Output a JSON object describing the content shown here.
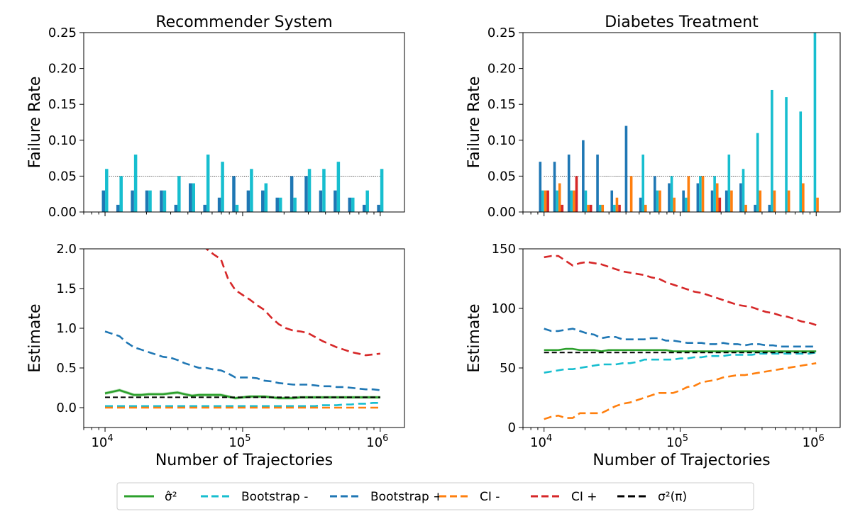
{
  "colors": {
    "sigma_hat": "#2ca02c",
    "bootstrap_minus": "#17becf",
    "bootstrap_plus": "#1f77b4",
    "ci_minus": "#ff7f0e",
    "ci_plus": "#d62728",
    "sigma_pi": "#000000"
  },
  "chart_data": [
    {
      "id": "rs_failure",
      "type": "bar",
      "title": "Recommender System",
      "xlabel": "",
      "ylabel": "Failure Rate",
      "xscale": "log",
      "xlim": [
        7000,
        1500000
      ],
      "ylim": [
        0,
        0.25
      ],
      "yticks": [
        0.0,
        0.05,
        0.1,
        0.15,
        0.2,
        0.25
      ],
      "ytick_labels": [
        "0.00",
        "0.05",
        "0.10",
        "0.15",
        "0.20",
        "0.25"
      ],
      "reference_line": 0.05,
      "x": [
        10000,
        12743,
        16238,
        20691,
        26367,
        33598,
        42813,
        54556,
        69519,
        88587,
        112884,
        143845,
        183298,
        233572,
        297635,
        379269,
        483293,
        615848,
        784760,
        1000000
      ],
      "series": [
        {
          "key": "bootstrap_plus",
          "values": [
            0.03,
            0.01,
            0.03,
            0.03,
            0.03,
            0.01,
            0.04,
            0.01,
            0.02,
            0.05,
            0.03,
            0.03,
            0.02,
            0.05,
            0.05,
            0.03,
            0.03,
            0.02,
            0.01,
            0.01
          ]
        },
        {
          "key": "bootstrap_minus",
          "values": [
            0.06,
            0.05,
            0.08,
            0.03,
            0.03,
            0.05,
            0.04,
            0.08,
            0.07,
            0.01,
            0.06,
            0.04,
            0.02,
            0.02,
            0.06,
            0.06,
            0.07,
            0.02,
            0.03,
            0.06
          ]
        }
      ]
    },
    {
      "id": "dt_failure",
      "type": "bar",
      "title": "Diabetes Treatment",
      "xlabel": "",
      "ylabel": "Failure Rate",
      "xscale": "log",
      "xlim": [
        7000,
        1500000
      ],
      "ylim": [
        0,
        0.25
      ],
      "yticks": [
        0.0,
        0.05,
        0.1,
        0.15,
        0.2,
        0.25
      ],
      "ytick_labels": [
        "0.00",
        "0.05",
        "0.10",
        "0.15",
        "0.20",
        "0.25"
      ],
      "reference_line": 0.05,
      "x": [
        10000,
        12743,
        16238,
        20691,
        26367,
        33598,
        42813,
        54556,
        69519,
        88587,
        112884,
        143845,
        183298,
        233572,
        297635,
        379269,
        483293,
        615848,
        784760,
        1000000
      ],
      "series": [
        {
          "key": "bootstrap_plus",
          "values": [
            0.07,
            0.07,
            0.08,
            0.1,
            0.08,
            0.03,
            0.12,
            0.02,
            0.05,
            0.04,
            0.03,
            0.04,
            0.03,
            0.03,
            0.04,
            0.01,
            0.01,
            0.0,
            0.0,
            0.0
          ]
        },
        {
          "key": "bootstrap_minus",
          "values": [
            0.03,
            0.03,
            0.03,
            0.03,
            0.01,
            0.01,
            0.0,
            0.08,
            0.03,
            0.05,
            0.02,
            0.05,
            0.05,
            0.08,
            0.06,
            0.11,
            0.17,
            0.16,
            0.14,
            0.25
          ]
        },
        {
          "key": "ci_minus",
          "values": [
            0.03,
            0.04,
            0.03,
            0.01,
            0.01,
            0.02,
            0.05,
            0.01,
            0.03,
            0.02,
            0.05,
            0.05,
            0.04,
            0.03,
            0.01,
            0.03,
            0.03,
            0.03,
            0.04,
            0.02
          ]
        },
        {
          "key": "ci_plus",
          "values": [
            0.03,
            0.01,
            0.05,
            0.01,
            0.0,
            0.01,
            0.0,
            0.0,
            0.0,
            0.0,
            0.0,
            0.0,
            0.02,
            0.0,
            0.0,
            0.0,
            0.0,
            0.0,
            0.0,
            0.0
          ]
        }
      ]
    },
    {
      "id": "rs_estimate",
      "type": "line",
      "title": "",
      "xlabel": "Number of Trajectories",
      "ylabel": "Estimate",
      "xscale": "log",
      "xlim": [
        7000,
        1500000
      ],
      "ylim": [
        -0.25,
        2.0
      ],
      "yticks": [
        0.0,
        0.5,
        1.0,
        1.5,
        2.0
      ],
      "ytick_labels": [
        "0.0",
        "0.5",
        "1.0",
        "1.5",
        "2.0"
      ],
      "xticks": [
        10000,
        100000,
        1000000
      ],
      "xtick_exponents": [
        "4",
        "5",
        "6"
      ],
      "x": [
        10000,
        11288,
        12743,
        14384,
        16238,
        18330,
        20691,
        23357,
        26367,
        29764,
        33598,
        37927,
        42813,
        48329,
        54556,
        61585,
        69519,
        78476,
        88587,
        100000,
        112884,
        127427,
        143845,
        162378,
        183298,
        206914,
        233572,
        263665,
        297635,
        335982,
        379269,
        428133,
        483293,
        545559,
        615848,
        695193,
        784760,
        885867,
        1000000
      ],
      "series": [
        {
          "key": "sigma_hat",
          "style": "solid",
          "band": 0.02,
          "values": [
            0.18,
            0.2,
            0.22,
            0.19,
            0.16,
            0.16,
            0.17,
            0.17,
            0.17,
            0.18,
            0.19,
            0.17,
            0.15,
            0.16,
            0.16,
            0.16,
            0.16,
            0.14,
            0.12,
            0.13,
            0.14,
            0.14,
            0.14,
            0.13,
            0.12,
            0.12,
            0.12,
            0.13,
            0.13,
            0.13,
            0.13,
            0.13,
            0.13,
            0.13,
            0.13,
            0.13,
            0.13,
            0.13,
            0.13
          ]
        },
        {
          "key": "bootstrap_minus",
          "style": "dashed",
          "values": [
            0.02,
            0.02,
            0.02,
            0.02,
            0.02,
            0.02,
            0.02,
            0.02,
            0.02,
            0.02,
            0.02,
            0.02,
            0.02,
            0.02,
            0.02,
            0.02,
            0.02,
            0.02,
            0.02,
            0.02,
            0.02,
            0.02,
            0.02,
            0.02,
            0.02,
            0.02,
            0.02,
            0.02,
            0.02,
            0.02,
            0.03,
            0.03,
            0.03,
            0.04,
            0.04,
            0.05,
            0.05,
            0.06,
            0.06
          ]
        },
        {
          "key": "bootstrap_plus",
          "style": "dashed",
          "values": [
            0.96,
            0.93,
            0.9,
            0.82,
            0.76,
            0.73,
            0.7,
            0.67,
            0.64,
            0.63,
            0.6,
            0.56,
            0.53,
            0.5,
            0.5,
            0.48,
            0.47,
            0.43,
            0.38,
            0.38,
            0.38,
            0.37,
            0.34,
            0.33,
            0.31,
            0.3,
            0.29,
            0.29,
            0.29,
            0.28,
            0.27,
            0.27,
            0.26,
            0.26,
            0.25,
            0.24,
            0.23,
            0.23,
            0.22
          ]
        },
        {
          "key": "ci_minus",
          "style": "dashed",
          "values": [
            0.0,
            0.0,
            0.0,
            0.0,
            0.0,
            0.0,
            0.0,
            0.0,
            0.0,
            0.0,
            0.0,
            0.0,
            0.0,
            0.0,
            0.0,
            0.0,
            0.0,
            0.0,
            0.0,
            0.0,
            0.0,
            0.0,
            0.0,
            0.0,
            0.0,
            0.0,
            0.0,
            0.0,
            0.0,
            0.0,
            0.0,
            0.0,
            0.0,
            0.0,
            0.0,
            0.0,
            0.0,
            0.0,
            0.0
          ]
        },
        {
          "key": "ci_plus",
          "style": "dashed",
          "values": [
            null,
            null,
            null,
            null,
            null,
            null,
            null,
            null,
            null,
            null,
            null,
            null,
            null,
            2.2,
            2.0,
            1.93,
            1.87,
            1.62,
            1.48,
            1.42,
            1.36,
            1.29,
            1.23,
            1.13,
            1.05,
            1.0,
            0.97,
            0.96,
            0.94,
            0.89,
            0.84,
            0.8,
            0.76,
            0.73,
            0.7,
            0.68,
            0.66,
            0.67,
            0.68
          ]
        },
        {
          "key": "sigma_pi",
          "style": "dashed",
          "values": [
            0.13,
            0.13,
            0.13,
            0.13,
            0.13,
            0.13,
            0.13,
            0.13,
            0.13,
            0.13,
            0.13,
            0.13,
            0.13,
            0.13,
            0.13,
            0.13,
            0.13,
            0.13,
            0.13,
            0.13,
            0.13,
            0.13,
            0.13,
            0.13,
            0.13,
            0.13,
            0.13,
            0.13,
            0.13,
            0.13,
            0.13,
            0.13,
            0.13,
            0.13,
            0.13,
            0.13,
            0.13,
            0.13,
            0.13
          ]
        }
      ]
    },
    {
      "id": "dt_estimate",
      "type": "line",
      "title": "",
      "xlabel": "Number of Trajectories",
      "ylabel": "Estimate",
      "xscale": "log",
      "xlim": [
        7000,
        1500000
      ],
      "ylim": [
        0,
        150
      ],
      "yticks": [
        0,
        50,
        100,
        150
      ],
      "ytick_labels": [
        "0",
        "50",
        "100",
        "150"
      ],
      "xticks": [
        10000,
        100000,
        1000000
      ],
      "xtick_exponents": [
        "4",
        "5",
        "6"
      ],
      "x": [
        10000,
        11288,
        12743,
        14384,
        16238,
        18330,
        20691,
        23357,
        26367,
        29764,
        33598,
        37927,
        42813,
        48329,
        54556,
        61585,
        69519,
        78476,
        88587,
        100000,
        112884,
        127427,
        143845,
        162378,
        183298,
        206914,
        233572,
        263665,
        297635,
        335982,
        379269,
        428133,
        483293,
        545559,
        615848,
        695193,
        784760,
        885867,
        1000000
      ],
      "series": [
        {
          "key": "sigma_hat",
          "style": "solid",
          "values": [
            65,
            65,
            65,
            66,
            66,
            65,
            65,
            65,
            64,
            65,
            65,
            65,
            65,
            65,
            65,
            65,
            65,
            65,
            64,
            64,
            64,
            64,
            64,
            64,
            64,
            64,
            64,
            64,
            64,
            64,
            64,
            64,
            64,
            64,
            64,
            64,
            64,
            64,
            64
          ]
        },
        {
          "key": "bootstrap_minus",
          "style": "dashed",
          "values": [
            46,
            47,
            48,
            49,
            49,
            50,
            51,
            52,
            53,
            53,
            53,
            54,
            54,
            55,
            57,
            57,
            57,
            57,
            57,
            58,
            58,
            59,
            59,
            60,
            60,
            60,
            61,
            61,
            61,
            61,
            62,
            62,
            62,
            62,
            62,
            62,
            62,
            62,
            63
          ]
        },
        {
          "key": "bootstrap_plus",
          "style": "dashed",
          "values": [
            83,
            81,
            81,
            82,
            83,
            81,
            79,
            78,
            75,
            76,
            76,
            74,
            74,
            74,
            74,
            75,
            75,
            73,
            73,
            72,
            71,
            71,
            71,
            70,
            70,
            71,
            70,
            70,
            69,
            70,
            70,
            69,
            69,
            68,
            68,
            68,
            68,
            68,
            68
          ]
        },
        {
          "key": "ci_minus",
          "style": "dashed",
          "values": [
            7,
            9,
            10,
            8,
            8,
            12,
            12,
            12,
            12,
            15,
            18,
            20,
            21,
            23,
            25,
            27,
            29,
            29,
            29,
            31,
            34,
            35,
            38,
            39,
            40,
            42,
            43,
            44,
            44,
            45,
            46,
            47,
            48,
            49,
            50,
            51,
            52,
            53,
            54
          ]
        },
        {
          "key": "ci_plus",
          "style": "dashed",
          "values": [
            143,
            144,
            144,
            140,
            136,
            138,
            139,
            138,
            137,
            135,
            133,
            131,
            130,
            129,
            128,
            126,
            125,
            122,
            120,
            118,
            116,
            114,
            113,
            111,
            109,
            107,
            105,
            103,
            102,
            101,
            99,
            97,
            96,
            94,
            93,
            91,
            89,
            88,
            86
          ]
        },
        {
          "key": "sigma_pi",
          "style": "dashed",
          "values": [
            63,
            63,
            63,
            63,
            63,
            63,
            63,
            63,
            63,
            63,
            63,
            63,
            63,
            63,
            63,
            63,
            63,
            63,
            63,
            63,
            63,
            63,
            63,
            63,
            63,
            63,
            63,
            63,
            63,
            63,
            63,
            63,
            63,
            63,
            63,
            63,
            63,
            63,
            63
          ]
        }
      ]
    }
  ],
  "legend": {
    "placement": "bottom-center",
    "items": [
      {
        "key": "sigma_hat",
        "style": "solid",
        "label": "σ̂²"
      },
      {
        "key": "bootstrap_minus",
        "style": "dashed",
        "label": "Bootstrap -"
      },
      {
        "key": "bootstrap_plus",
        "style": "dashed",
        "label": "Bootstrap +"
      },
      {
        "key": "ci_minus",
        "style": "dashed",
        "label": "CI -"
      },
      {
        "key": "ci_plus",
        "style": "dashed",
        "label": "CI +"
      },
      {
        "key": "sigma_pi",
        "style": "dashed",
        "label": "σ²(π)"
      }
    ]
  }
}
